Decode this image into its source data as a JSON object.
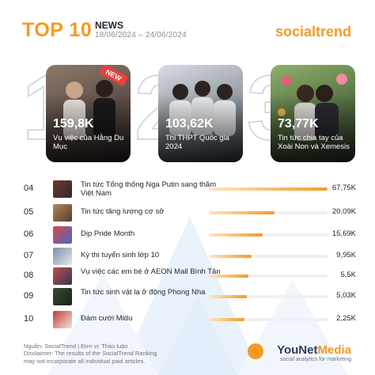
{
  "header": {
    "title": "TOP 10",
    "subtitle": "NEWS",
    "dates": "18/06/2024 – 24/06/2024",
    "brand_social": "social",
    "brand_trend": "trend"
  },
  "top3": [
    {
      "rank": "1",
      "value": "159,8K",
      "caption": "Vụ việc của Hằng Du Mục",
      "badge": "NEW"
    },
    {
      "rank": "2",
      "value": "103,62K",
      "caption": "Thi THPT Quốc gia 2024"
    },
    {
      "rank": "3",
      "value": "73,77K",
      "caption": "Tin tức chia tay của Xoài Non và Xemesis"
    }
  ],
  "list": [
    {
      "rank": "04",
      "title": "Tin tức Tổng thống Nga Putin sang thăm Việt Nam",
      "value": "67,75K",
      "fraction": 1.0
    },
    {
      "rank": "05",
      "title": "Tin tức tăng lương cơ sở",
      "value": "20,09K",
      "fraction": 0.55
    },
    {
      "rank": "06",
      "title": "Dịp Pride Month",
      "value": "15,69K",
      "fraction": 0.45
    },
    {
      "rank": "07",
      "title": "Kỳ thi tuyển sinh lớp 10",
      "value": "9,95K",
      "fraction": 0.36
    },
    {
      "rank": "08",
      "title": "Vụ việc các em bé ở AEON Mall Bình Tân",
      "value": "5,5K",
      "fraction": 0.33
    },
    {
      "rank": "09",
      "title": "Tin tức sinh vật lạ ở động Phong Nha",
      "value": "5,03K",
      "fraction": 0.32
    },
    {
      "rank": "10",
      "title": "Đám cưới Midu",
      "value": "2,25K",
      "fraction": 0.3
    }
  ],
  "footer": {
    "line1": "Nguồn: SocialTrend | Đơn vị: Thảo luận",
    "line2": "Disclaimer: The results of the SocialTrend Ranking",
    "line3": "may not incorporate all individual paid articles.",
    "logo_you": "YouNet",
    "logo_media": "Media",
    "tagline": "social analytics for marketing"
  }
}
